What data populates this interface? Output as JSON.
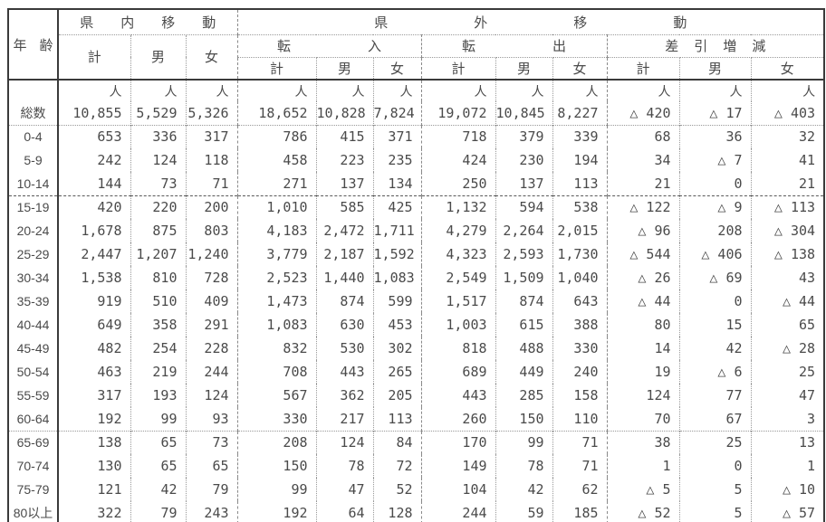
{
  "colors": {
    "background": "#ffffff",
    "border_solid": "#3a3a3a",
    "grid_dotted": "#9a9a9a",
    "text": "#4a4a4a"
  },
  "table": {
    "header": {
      "age_label": "年齢",
      "intra": {
        "label": "県内移動",
        "cols": [
          "計",
          "男",
          "女"
        ]
      },
      "inter": {
        "label": "県外移動",
        "subsections": [
          {
            "label": "転入",
            "cols": [
              "計",
              "男",
              "女"
            ]
          },
          {
            "label": "転出",
            "cols": [
              "計",
              "男",
              "女"
            ]
          },
          {
            "label": "差引増減",
            "cols": [
              "計",
              "男",
              "女"
            ]
          }
        ]
      },
      "unit": "人"
    },
    "rows": [
      {
        "label": "総数",
        "values": [
          "10,855",
          "5,529",
          "5,326",
          "18,652",
          "10,828",
          "7,824",
          "19,072",
          "10,845",
          "8,227",
          "△ 420",
          "△ 17",
          "△ 403"
        ]
      },
      {
        "label": "0-4",
        "values": [
          "653",
          "336",
          "317",
          "786",
          "415",
          "371",
          "718",
          "379",
          "339",
          "68",
          "36",
          "32"
        ]
      },
      {
        "label": "5-9",
        "values": [
          "242",
          "124",
          "118",
          "458",
          "223",
          "235",
          "424",
          "230",
          "194",
          "34",
          "△ 7",
          "41"
        ]
      },
      {
        "label": "10-14",
        "values": [
          "144",
          "73",
          "71",
          "271",
          "137",
          "134",
          "250",
          "137",
          "113",
          "21",
          "0",
          "21"
        ]
      },
      {
        "label": "15-19",
        "values": [
          "420",
          "220",
          "200",
          "1,010",
          "585",
          "425",
          "1,132",
          "594",
          "538",
          "△ 122",
          "△ 9",
          "△ 113"
        ]
      },
      {
        "label": "20-24",
        "values": [
          "1,678",
          "875",
          "803",
          "4,183",
          "2,472",
          "1,711",
          "4,279",
          "2,264",
          "2,015",
          "△ 96",
          "208",
          "△ 304"
        ]
      },
      {
        "label": "25-29",
        "values": [
          "2,447",
          "1,207",
          "1,240",
          "3,779",
          "2,187",
          "1,592",
          "4,323",
          "2,593",
          "1,730",
          "△ 544",
          "△ 406",
          "△ 138"
        ]
      },
      {
        "label": "30-34",
        "values": [
          "1,538",
          "810",
          "728",
          "2,523",
          "1,440",
          "1,083",
          "2,549",
          "1,509",
          "1,040",
          "△ 26",
          "△ 69",
          "43"
        ]
      },
      {
        "label": "35-39",
        "values": [
          "919",
          "510",
          "409",
          "1,473",
          "874",
          "599",
          "1,517",
          "874",
          "643",
          "△ 44",
          "0",
          "△ 44"
        ]
      },
      {
        "label": "40-44",
        "values": [
          "649",
          "358",
          "291",
          "1,083",
          "630",
          "453",
          "1,003",
          "615",
          "388",
          "80",
          "15",
          "65"
        ]
      },
      {
        "label": "45-49",
        "values": [
          "482",
          "254",
          "228",
          "832",
          "530",
          "302",
          "818",
          "488",
          "330",
          "14",
          "42",
          "△ 28"
        ]
      },
      {
        "label": "50-54",
        "values": [
          "463",
          "219",
          "244",
          "708",
          "443",
          "265",
          "689",
          "449",
          "240",
          "19",
          "△ 6",
          "25"
        ]
      },
      {
        "label": "55-59",
        "values": [
          "317",
          "193",
          "124",
          "567",
          "362",
          "205",
          "443",
          "285",
          "158",
          "124",
          "77",
          "47"
        ]
      },
      {
        "label": "60-64",
        "values": [
          "192",
          "99",
          "93",
          "330",
          "217",
          "113",
          "260",
          "150",
          "110",
          "70",
          "67",
          "3"
        ]
      },
      {
        "label": "65-69",
        "values": [
          "138",
          "65",
          "73",
          "208",
          "124",
          "84",
          "170",
          "99",
          "71",
          "38",
          "25",
          "13"
        ]
      },
      {
        "label": "70-74",
        "values": [
          "130",
          "65",
          "65",
          "150",
          "78",
          "72",
          "149",
          "78",
          "71",
          "1",
          "0",
          "1"
        ]
      },
      {
        "label": "75-79",
        "values": [
          "121",
          "42",
          "79",
          "99",
          "47",
          "52",
          "104",
          "42",
          "62",
          "△ 5",
          "5",
          "△ 10"
        ]
      },
      {
        "label": "80以上",
        "values": [
          "322",
          "79",
          "243",
          "192",
          "64",
          "128",
          "244",
          "59",
          "185",
          "△ 52",
          "5",
          "△ 57"
        ]
      }
    ]
  }
}
